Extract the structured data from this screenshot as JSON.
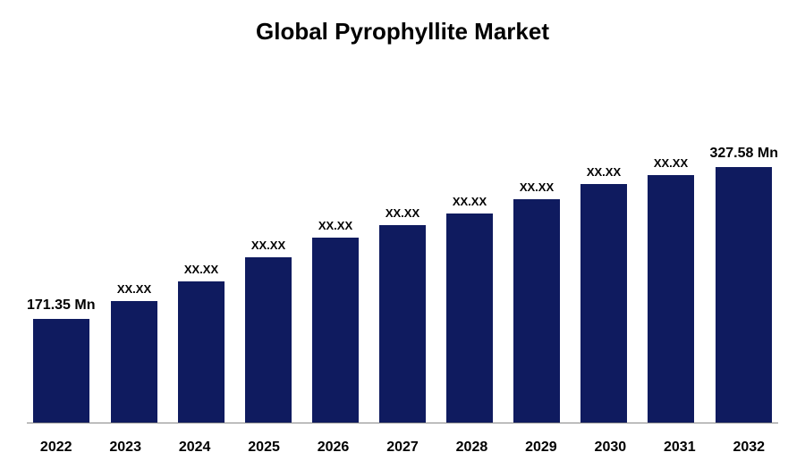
{
  "chart": {
    "type": "bar",
    "title": "Global Pyrophyllite Market",
    "title_fontsize": 26,
    "title_color": "#000000",
    "background_color": "#ffffff",
    "axis_line_color": "#888888",
    "bar_color": "#0f1b5f",
    "bar_width_pct": 82,
    "label_fontsize_large": 16,
    "label_fontsize_small": 13,
    "tick_fontsize": 16,
    "ylim": [
      0,
      350
    ],
    "categories": [
      "2022",
      "2023",
      "2024",
      "2025",
      "2026",
      "2027",
      "2028",
      "2029",
      "2030",
      "2031",
      "2032"
    ],
    "values": [
      171.35,
      190,
      210,
      235,
      255,
      268,
      280,
      295,
      310,
      320,
      327.58
    ],
    "value_labels": [
      "171.35 Mn",
      "XX.XX",
      "XX.XX",
      "XX.XX",
      "XX.XX",
      "XX.XX",
      "XX.XX",
      "XX.XX",
      "XX.XX",
      "XX.XX",
      "327.58 Mn"
    ],
    "value_label_bold": [
      true,
      false,
      false,
      false,
      false,
      false,
      false,
      false,
      false,
      false,
      true
    ]
  }
}
